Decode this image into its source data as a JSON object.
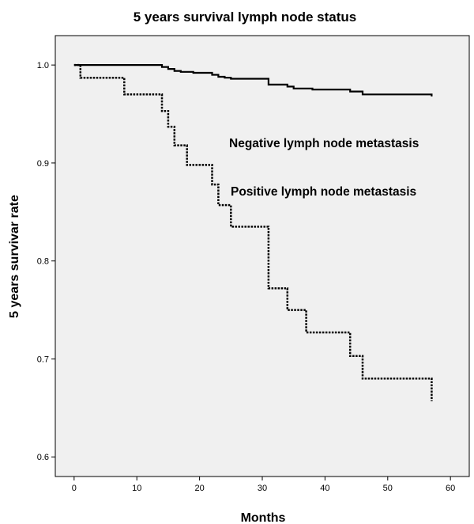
{
  "chart_data": {
    "type": "line",
    "title": "5 years survival lymph node status",
    "xlabel": "Months",
    "ylabel": "5 years survivar rate",
    "xlim": [
      -3,
      63
    ],
    "ylim": [
      0.58,
      1.03
    ],
    "xticks": [
      0,
      10,
      20,
      30,
      40,
      50,
      60
    ],
    "yticks": [
      0.6,
      0.7,
      0.8,
      0.9,
      1.0
    ],
    "ytick_labels": [
      "0.6",
      "0.7",
      "0.8",
      "0.9",
      "1.0"
    ],
    "grid": false,
    "legend": "none",
    "annotations": [
      {
        "text": "Negative lymph node metastasis",
        "series": "negative"
      },
      {
        "text": "Positive lymph node metastasis",
        "series": "positive"
      }
    ],
    "series": [
      {
        "key": "negative",
        "style": "solid",
        "color": "#000000",
        "step": true,
        "points": [
          [
            0,
            1.0
          ],
          [
            14,
            0.998
          ],
          [
            15,
            0.996
          ],
          [
            16,
            0.994
          ],
          [
            17,
            0.993
          ],
          [
            19,
            0.992
          ],
          [
            22,
            0.99
          ],
          [
            23,
            0.988
          ],
          [
            24,
            0.987
          ],
          [
            25,
            0.986
          ],
          [
            31,
            0.985
          ],
          [
            31,
            0.98
          ],
          [
            34,
            0.978
          ],
          [
            35,
            0.976
          ],
          [
            38,
            0.975
          ],
          [
            44,
            0.973
          ],
          [
            46,
            0.97
          ],
          [
            57,
            0.968
          ]
        ]
      },
      {
        "key": "positive",
        "style": "dotted",
        "color": "#000000",
        "step": true,
        "points": [
          [
            0,
            1.0
          ],
          [
            1,
            0.987
          ],
          [
            8,
            0.97
          ],
          [
            14,
            0.953
          ],
          [
            15,
            0.937
          ],
          [
            16,
            0.918
          ],
          [
            18,
            0.898
          ],
          [
            22,
            0.878
          ],
          [
            23,
            0.857
          ],
          [
            25,
            0.835
          ],
          [
            31,
            0.772
          ],
          [
            34,
            0.75
          ],
          [
            37,
            0.727
          ],
          [
            44,
            0.703
          ],
          [
            46,
            0.68
          ],
          [
            57,
            0.657
          ]
        ]
      }
    ]
  }
}
